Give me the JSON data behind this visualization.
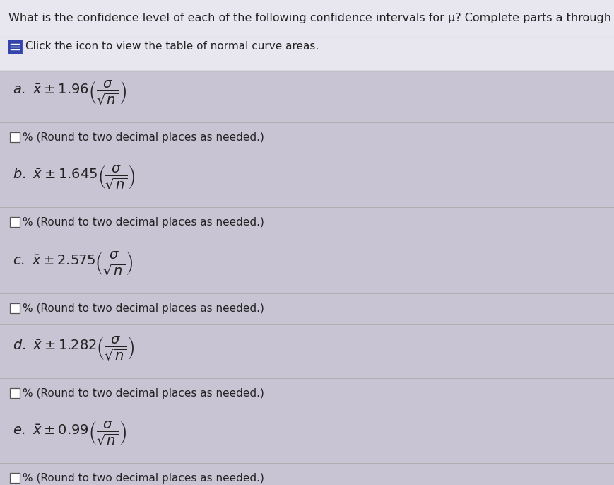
{
  "title": "What is the confidence level of each of the following confidence intervals for μ? Complete parts a through e.",
  "subtitle": "Click the icon to view the table of normal curve areas.",
  "bg_top": "#e8e6ee",
  "bg_main": "#c8c4d4",
  "text_color": "#222222",
  "parts": [
    {
      "label": "a",
      "z": "1.96"
    },
    {
      "label": "b",
      "z": "1.645"
    },
    {
      "label": "c",
      "z": "2.575"
    },
    {
      "label": "d",
      "z": "1.282"
    },
    {
      "label": "e",
      "z": "0.99"
    }
  ],
  "round_note": "% (Round to two decimal places as needed.)",
  "title_fontsize": 11.5,
  "subtitle_fontsize": 11,
  "part_fontsize": 14,
  "note_fontsize": 11,
  "icon_color": "#3344aa",
  "sep_color": "#aaaaaa",
  "header_line_color": "#bbbbbb"
}
